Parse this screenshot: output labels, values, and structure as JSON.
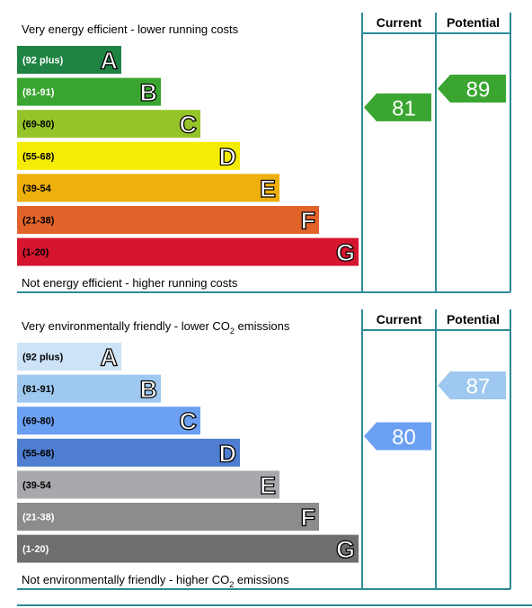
{
  "chart_data": [
    {
      "type": "epc-rating",
      "top_text": "Very energy efficient - lower running costs",
      "bottom_text": "Not energy efficient - higher running costs",
      "columns": [
        "Current",
        "Potential"
      ],
      "bands": [
        {
          "letter": "A",
          "range": "(92 plus)",
          "color": "#1f8443",
          "text_color": "#ffffff",
          "letter_fill": "#ffffff"
        },
        {
          "letter": "B",
          "range": "(81-91)",
          "color": "#3aa631",
          "text_color": "#ffffff",
          "letter_fill": "#ffffff"
        },
        {
          "letter": "C",
          "range": "(69-80)",
          "color": "#95c42a",
          "text_color": "#000000",
          "letter_fill": "#ffffff"
        },
        {
          "letter": "D",
          "range": "(55-68)",
          "color": "#f5ec06",
          "text_color": "#000000",
          "letter_fill": "#ffffff"
        },
        {
          "letter": "E",
          "range": "(39-54",
          "color": "#efaf0c",
          "text_color": "#000000",
          "letter_fill": "#ffffff"
        },
        {
          "letter": "F",
          "range": "(21-38)",
          "color": "#e2632a",
          "text_color": "#000000",
          "letter_fill": "#ffffff"
        },
        {
          "letter": "G",
          "range": "(1-20)",
          "color": "#d6152e",
          "text_color": "#000000",
          "letter_fill": "#ffffff"
        }
      ],
      "current": {
        "value": 81,
        "label": "81",
        "color": "#3aa631"
      },
      "potential": {
        "value": 89,
        "label": "89",
        "color": "#3aa631"
      }
    },
    {
      "type": "epc-rating",
      "top_text": "Very environmentally friendly - lower CO",
      "top_text_sub": "2",
      "top_text_tail": " emissions",
      "bottom_text": "Not environmentally friendly - higher CO",
      "bottom_text_sub": "2",
      "bottom_text_tail": " emissions",
      "columns": [
        "Current",
        "Potential"
      ],
      "bands": [
        {
          "letter": "A",
          "range": "(92 plus)",
          "color": "#cde3f7",
          "text_color": "#000000",
          "letter_fill": "#ffffff"
        },
        {
          "letter": "B",
          "range": "(81-91)",
          "color": "#9ec8ef",
          "text_color": "#000000",
          "letter_fill": "#ffffff"
        },
        {
          "letter": "C",
          "range": "(69-80)",
          "color": "#6b9ff2",
          "text_color": "#000000",
          "letter_fill": "#ffffff"
        },
        {
          "letter": "D",
          "range": "(55-68)",
          "color": "#4f7ed0",
          "text_color": "#000000",
          "letter_fill": "#ffffff"
        },
        {
          "letter": "E",
          "range": "(39-54",
          "color": "#a7a9ac",
          "text_color": "#000000",
          "letter_fill": "#ffffff"
        },
        {
          "letter": "F",
          "range": "(21-38)",
          "color": "#8a8c8e",
          "text_color": "#ffffff",
          "letter_fill": "#ffffff"
        },
        {
          "letter": "G",
          "range": "(1-20)",
          "color": "#6d6e70",
          "text_color": "#ffffff",
          "letter_fill": "#ffffff"
        }
      ],
      "current": {
        "value": 80,
        "label": "80",
        "color": "#6b9ff2"
      },
      "potential": {
        "value": 87,
        "label": "87",
        "color": "#9ec8ef"
      }
    }
  ],
  "colors": {
    "frame": "#2e8a96",
    "footer_rule": "#2e8a96"
  }
}
